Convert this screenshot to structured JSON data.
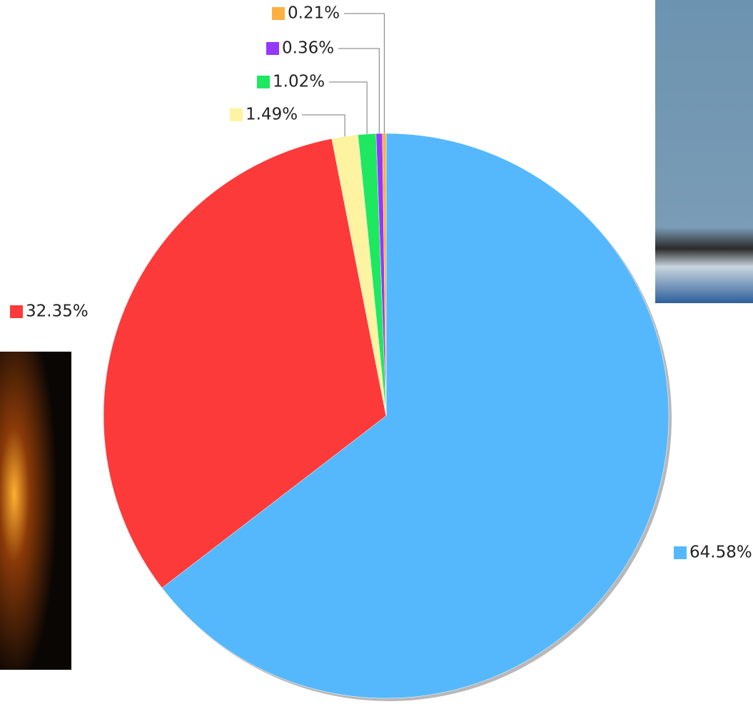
{
  "chart_data": {
    "type": "pie",
    "values": [
      64.58,
      32.35,
      1.49,
      1.02,
      0.36,
      0.21
    ],
    "value_labels": [
      "64.58%",
      "32.35%",
      "1.49%",
      "1.02%",
      "0.36%",
      "0.21%"
    ],
    "colors": [
      "#55b8fd",
      "#fd3a3a",
      "#fdf3a0",
      "#1ee860",
      "#9637fd",
      "#fdb040"
    ]
  }
}
